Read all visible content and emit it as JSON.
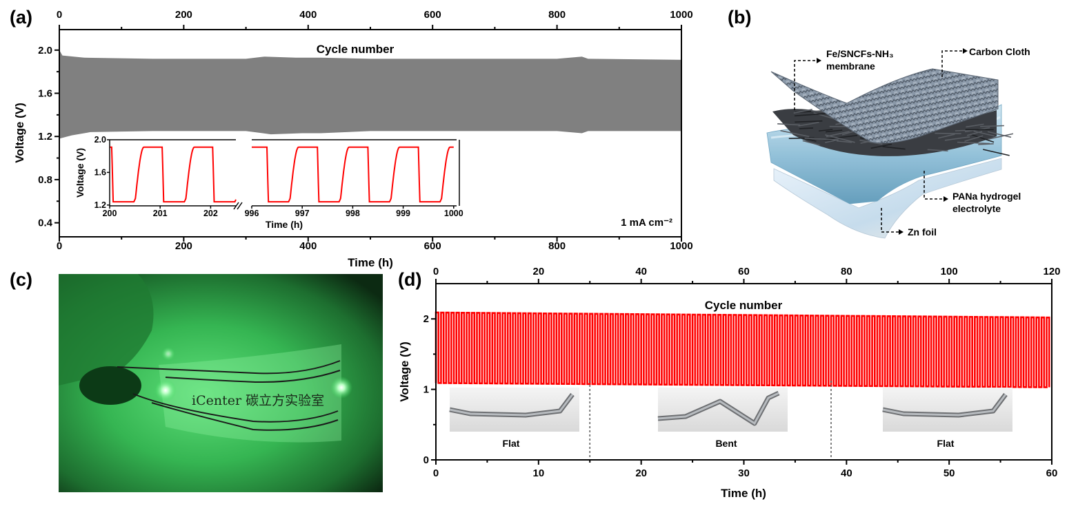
{
  "panels": {
    "a": "(a)",
    "b": "(b)",
    "c": "(c)",
    "d": "(d)"
  },
  "chart_data": [
    {
      "panel": "a",
      "type": "area",
      "xlabel": "Time (h)",
      "ylabel": "Voltage (V)",
      "top_axis_label": "Cycle number",
      "xlim": [
        0,
        1000
      ],
      "ylim": [
        0.27,
        2.19
      ],
      "xticks": [
        0,
        200,
        400,
        600,
        800,
        1000
      ],
      "top_ticks": [
        0,
        200,
        400,
        600,
        800,
        1000
      ],
      "yticks": [
        0.4,
        0.8,
        1.2,
        1.6,
        2.0
      ],
      "annotation": "1 mA cm⁻²",
      "color": "#808080",
      "upper_envelope": [
        [
          0,
          2.0
        ],
        [
          5,
          1.95
        ],
        [
          40,
          1.93
        ],
        [
          150,
          1.92
        ],
        [
          300,
          1.92
        ],
        [
          330,
          1.94
        ],
        [
          380,
          1.93
        ],
        [
          420,
          1.93
        ],
        [
          500,
          1.92
        ],
        [
          640,
          1.92
        ],
        [
          800,
          1.92
        ],
        [
          840,
          1.94
        ],
        [
          850,
          1.92
        ],
        [
          1000,
          1.91
        ]
      ],
      "lower_envelope": [
        [
          0,
          1.18
        ],
        [
          20,
          1.21
        ],
        [
          50,
          1.24
        ],
        [
          150,
          1.25
        ],
        [
          300,
          1.25
        ],
        [
          340,
          1.22
        ],
        [
          390,
          1.23
        ],
        [
          420,
          1.23
        ],
        [
          500,
          1.25
        ],
        [
          800,
          1.25
        ],
        [
          840,
          1.23
        ],
        [
          850,
          1.25
        ],
        [
          1000,
          1.25
        ]
      ],
      "grid": false
    },
    {
      "panel": "a-inset",
      "type": "line",
      "xlabel": "Time (h)",
      "ylabel": "Voltage (V)",
      "segments": [
        [
          200,
          202.5
        ],
        [
          996,
          1000
        ]
      ],
      "xticks": [
        200,
        201,
        202,
        996,
        997,
        998,
        999,
        1000
      ],
      "yticks": [
        1.2,
        1.6,
        2.0
      ],
      "ylim": [
        1.19,
        2.0
      ],
      "charge_voltage": 1.91,
      "discharge_voltage": 1.24,
      "cycle_period_h": 1,
      "color": "#ff0000",
      "axis_break": true
    },
    {
      "panel": "d",
      "type": "line",
      "xlabel": "Time (h)",
      "ylabel": "Voltage (V)",
      "top_axis_label": "Cycle number",
      "xlim": [
        0,
        60
      ],
      "top_xlim": [
        0,
        120
      ],
      "ylim": [
        0,
        2.5
      ],
      "xticks": [
        0,
        10,
        20,
        30,
        40,
        50,
        60
      ],
      "top_ticks": [
        0,
        20,
        40,
        60,
        80,
        100,
        120
      ],
      "yticks": [
        0,
        1,
        2
      ],
      "cycles": 120,
      "charge_voltage_start": 2.09,
      "charge_voltage_end": 2.02,
      "discharge_voltage_start": 1.09,
      "discharge_voltage_end": 1.03,
      "color": "#ff0000",
      "state_boundaries_h": [
        15,
        38.5
      ],
      "states": [
        "Flat",
        "Bent",
        "Flat"
      ]
    }
  ],
  "schematic": {
    "membrane_label_1": "Fe/SNCFs-NH₃",
    "membrane_label_2": "membrane",
    "cloth_label": "Carbon Cloth",
    "hydrogel_label_1": "PANa hydrogel",
    "hydrogel_label_2": "electrolyte",
    "zn_label": "Zn foil"
  },
  "photo": {
    "printed_text": "iCenter 碳立方实验室",
    "glow_color": "#2fd24a"
  }
}
